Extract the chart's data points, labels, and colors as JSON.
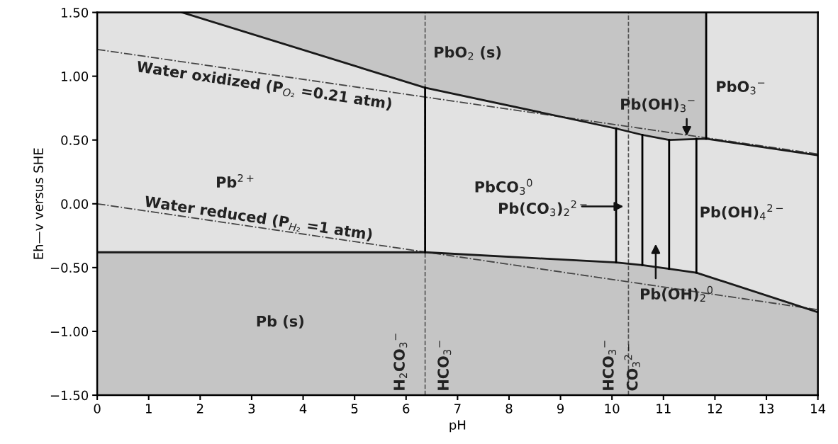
{
  "chart_data": {
    "type": "line",
    "xlabel": "pH",
    "ylabel": "Eh—v versus SHE",
    "xlim": [
      0,
      14
    ],
    "ylim": [
      -1.5,
      1.5
    ],
    "xticks": [
      0,
      1,
      2,
      3,
      4,
      5,
      6,
      7,
      8,
      9,
      10,
      11,
      12,
      13,
      14
    ],
    "yticks": [
      {
        "value": 1.5,
        "label": "1.50"
      },
      {
        "value": 1.0,
        "label": "1.00"
      },
      {
        "value": 0.5,
        "label": "0.50"
      },
      {
        "value": 0.0,
        "label": "0.00"
      },
      {
        "value": -0.5,
        "label": "−0.50"
      },
      {
        "value": -1.0,
        "label": "−1.00"
      },
      {
        "value": -1.5,
        "label": "−1.50"
      }
    ],
    "grid": false,
    "legend": false,
    "marker": "none",
    "bands": [
      {
        "axis": "x",
        "from": 0,
        "to": 14,
        "color": "#e2e2e2"
      }
    ],
    "ref_lines": [
      {
        "axis": "x",
        "value": 6.37,
        "color": "#555555",
        "line_style": "dashed"
      },
      {
        "axis": "x",
        "value": 10.32,
        "color": "#555555",
        "line_style": "dashed"
      }
    ],
    "series": [
      {
        "color": "#1a1a1a",
        "x": [
          1.65,
          6.37,
          10.08,
          10.59,
          11.11,
          11.83,
          11.83,
          14
        ],
        "values": [
          1.5,
          0.91,
          0.59,
          0.54,
          0.5,
          0.51,
          0.51,
          0.38
        ],
        "lower": [
          1.5,
          0.91,
          0.59,
          0.54,
          0.5,
          0.51,
          0.51,
          0.38
        ],
        "upper": [
          1.5,
          1.5,
          1.5,
          1.5,
          1.5,
          1.5,
          0.51,
          0.38
        ]
      },
      {
        "color": "#1a1a1a",
        "x": [
          0,
          6.37,
          10.08,
          10.59,
          11.11,
          11.64,
          14
        ],
        "values": [
          -0.38,
          -0.38,
          -0.46,
          -0.48,
          -0.51,
          -0.54,
          -0.85
        ],
        "lower": [
          -1.5,
          -1.5,
          -1.5,
          -1.5,
          -1.5,
          -1.5,
          -1.5
        ],
        "upper": [
          -0.38,
          -0.38,
          -0.46,
          -0.48,
          -0.51,
          -0.54,
          -0.85
        ]
      },
      {
        "color": "#444444",
        "line_style": "dashdot",
        "x": [
          0,
          14
        ],
        "values": [
          1.21,
          0.39
        ]
      },
      {
        "color": "#444444",
        "line_style": "dashdot",
        "x": [
          0,
          14
        ],
        "values": [
          0.0,
          -0.83
        ]
      },
      {
        "color": "#000000",
        "x": [
          6.37,
          6.37
        ],
        "values": [
          0.91,
          -0.38
        ]
      },
      {
        "color": "#000000",
        "x": [
          10.08,
          10.08
        ],
        "values": [
          0.59,
          -0.46
        ]
      },
      {
        "color": "#000000",
        "x": [
          10.59,
          10.59
        ],
        "values": [
          0.54,
          -0.48
        ]
      },
      {
        "color": "#000000",
        "x": [
          11.11,
          11.11
        ],
        "values": [
          0.5,
          -0.51
        ]
      },
      {
        "color": "#000000",
        "x": [
          11.64,
          11.64
        ],
        "values": [
          0.51,
          -0.54
        ]
      },
      {
        "color": "#000000",
        "x": [
          11.83,
          11.83
        ],
        "values": [
          1.5,
          0.51
        ]
      }
    ],
    "annotations": [
      "PbO$_{2}$ (s)",
      "Pb$^{2+}$",
      "PbCO$_{3}$$^{0}$",
      "Pb(OH)$_{3}$$^{−}$",
      "PbO$_{3}$$^{−}$",
      "Pb(CO$_{3}$)$_{2}$$^{2−}$",
      "Pb(OH)$_{4}$$^{2−}$",
      "Pb(OH)$_{2}$$^{0}$",
      "Pb (s)",
      "Water oxidized (P$_{O₂}$ =0.21 atm)",
      "Water reduced (P$_{H₂}$ =1 atm)",
      "H$_{2}$CO$_{3}$$^{−}$",
      "HCO$_{3}$$^{−}$",
      "HCO$_{3}$$^{−}$",
      "CO$_{3}$$^{2−}$"
    ]
  }
}
